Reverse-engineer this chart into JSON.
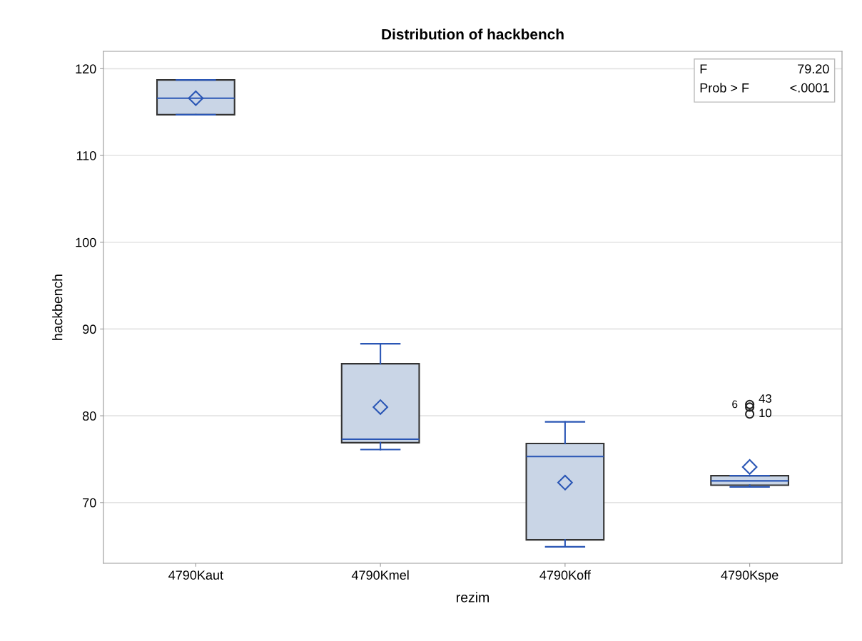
{
  "chart_data": {
    "type": "box",
    "title": "Distribution of hackbench",
    "xlabel": "rezim",
    "ylabel": "hackbench",
    "categories": [
      "4790Kaut",
      "4790Kmel",
      "4790Koff",
      "4790Kspe"
    ],
    "boxes": [
      {
        "low": 114.7,
        "q1": 114.7,
        "median": 116.6,
        "q3": 118.7,
        "high": 118.7,
        "mean": 116.6
      },
      {
        "low": 76.1,
        "q1": 76.9,
        "median": 77.3,
        "q3": 86.0,
        "high": 88.3,
        "mean": 81.0
      },
      {
        "low": 64.9,
        "q1": 65.7,
        "median": 75.3,
        "q3": 76.8,
        "high": 79.3,
        "mean": 72.3
      },
      {
        "low": 71.8,
        "q1": 72.0,
        "median": 72.5,
        "q3": 73.1,
        "high": 73.1,
        "mean": 74.1,
        "outliers": [
          81.0,
          81.3,
          80.2
        ]
      }
    ],
    "color": "#c9d5e6",
    "ylim": [
      63,
      122
    ],
    "yticks": [
      70,
      80,
      90,
      100,
      110,
      120
    ],
    "grid": "y",
    "annotations": [
      "F",
      "79.20",
      "Prob > F",
      "<.0001",
      "6",
      "43",
      "10"
    ]
  }
}
